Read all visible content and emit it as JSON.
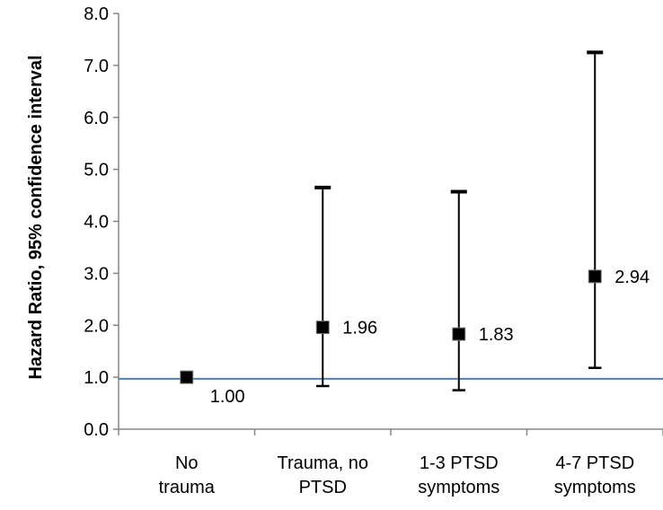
{
  "chart_data": {
    "type": "scatter",
    "title": "",
    "xlabel": "",
    "ylabel": "Hazard Ratio, 95% confidence interval",
    "ylim": [
      0,
      8
    ],
    "yticks": [
      "0.0",
      "1.0",
      "2.0",
      "3.0",
      "4.0",
      "5.0",
      "6.0",
      "7.0",
      "8.0"
    ],
    "grid": false,
    "reference_line": {
      "y": 0.97,
      "color": "#4f81bd"
    },
    "categories": [
      {
        "lines": [
          "No",
          "trauma"
        ]
      },
      {
        "lines": [
          "Trauma, no",
          "PTSD"
        ]
      },
      {
        "lines": [
          "1-3 PTSD",
          "symptoms"
        ]
      },
      {
        "lines": [
          "4-7 PTSD",
          "symptoms"
        ]
      }
    ],
    "points": [
      {
        "value": 1.0,
        "lower": null,
        "upper": null,
        "label": "1.00"
      },
      {
        "value": 1.96,
        "lower": 0.83,
        "upper": 4.65,
        "label": "1.96"
      },
      {
        "value": 1.83,
        "lower": 0.75,
        "upper": 4.57,
        "label": "1.83"
      },
      {
        "value": 2.94,
        "lower": 1.18,
        "upper": 7.25,
        "label": "2.94"
      }
    ],
    "marker_color": "#000000"
  }
}
